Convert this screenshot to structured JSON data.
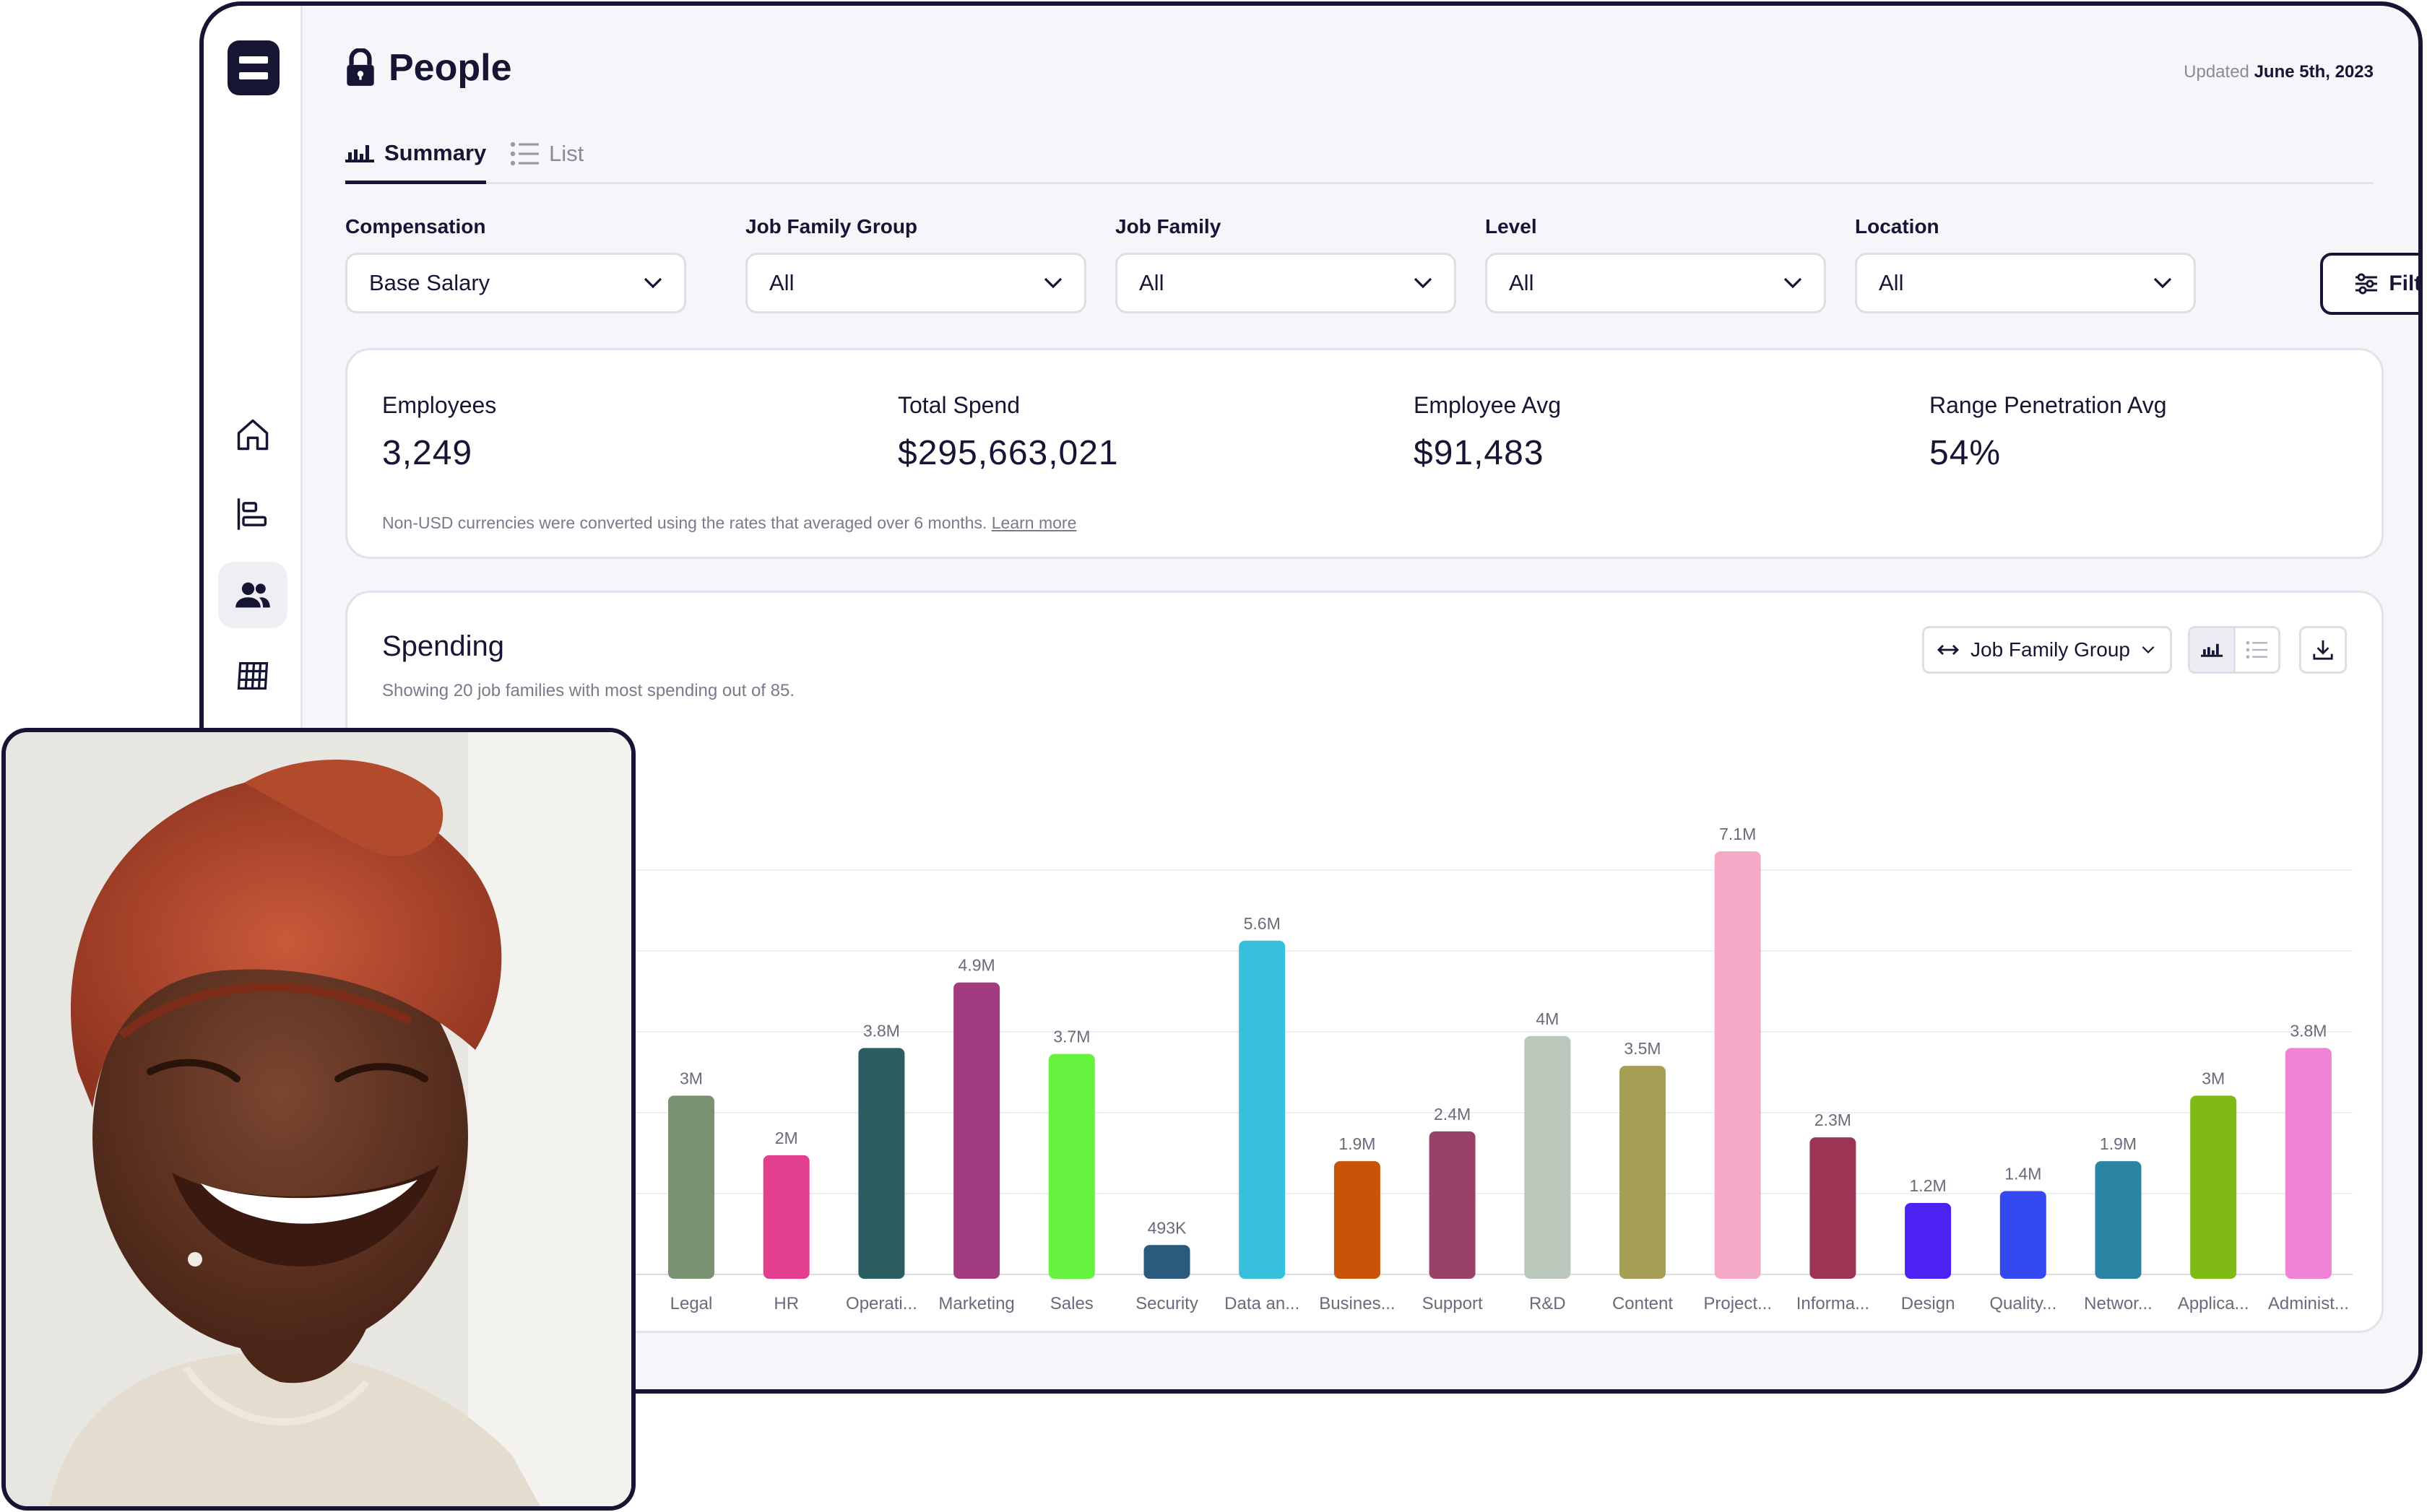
{
  "page": {
    "title": "People",
    "updated_prefix": "Updated",
    "updated_date": "June 5th, 2023"
  },
  "tabs": [
    {
      "label": "Summary",
      "icon": "bar-chart-icon",
      "active": true
    },
    {
      "label": "List",
      "icon": "list-icon",
      "active": false
    }
  ],
  "sidebar": {
    "items": [
      {
        "icon": "home-icon"
      },
      {
        "icon": "org-chart-icon"
      },
      {
        "icon": "people-icon",
        "active": true
      },
      {
        "icon": "grid-table-icon"
      }
    ]
  },
  "filters": {
    "compensation": {
      "label": "Compensation",
      "value": "Base Salary"
    },
    "job_family_group": {
      "label": "Job Family Group",
      "value": "All"
    },
    "job_family": {
      "label": "Job Family",
      "value": "All"
    },
    "level": {
      "label": "Level",
      "value": "All"
    },
    "location": {
      "label": "Location",
      "value": "All"
    },
    "filter_button": "Filter"
  },
  "stats": {
    "employees": {
      "label": "Employees",
      "value": "3,249"
    },
    "total_spend": {
      "label": "Total Spend",
      "value": "$295,663,021"
    },
    "employee_avg": {
      "label": "Employee Avg",
      "value": "$91,483"
    },
    "range_penetration": {
      "label": "Range Penetration Avg",
      "value": "54%"
    },
    "note": "Non-USD currencies were converted using the rates that averaged over 6 months.",
    "learn_more": "Learn more"
  },
  "spending": {
    "title": "Spending",
    "subtitle": "Showing 20 job families with most spending out of 85.",
    "group_by": "Job Family Group"
  },
  "colors": {
    "accent": "#161634"
  },
  "chart_data": {
    "type": "bar",
    "categories": [
      "Legal",
      "HR",
      "Operati...",
      "Marketing",
      "Sales",
      "Security",
      "Data an...",
      "Busines...",
      "Support",
      "R&D",
      "Content",
      "Project...",
      "Informa...",
      "Design",
      "Quality...",
      "Networ...",
      "Applica...",
      "Administ..."
    ],
    "values": [
      3000000,
      2000000,
      3800000,
      4900000,
      3700000,
      493000,
      5600000,
      1900000,
      2400000,
      4000000,
      3500000,
      7100000,
      2300000,
      1200000,
      1400000,
      1900000,
      3000000,
      3800000
    ],
    "value_labels": [
      "3M",
      "2M",
      "3.8M",
      "4.9M",
      "3.7M",
      "493K",
      "5.6M",
      "1.9M",
      "2.4M",
      "4M",
      "3.5M",
      "7.1M",
      "2.3M",
      "1.2M",
      "1.4M",
      "1.9M",
      "3M",
      "3.8M"
    ],
    "colors": [
      "#7a9272",
      "#e43f8e",
      "#2c5d62",
      "#a23b7f",
      "#66f23e",
      "#2a5a7c",
      "#37c0de",
      "#c95408",
      "#9a4168",
      "#b9c8bb",
      "#a59e55",
      "#f4aac6",
      "#9b3553",
      "#4b22f2",
      "#3549f0",
      "#2c84a4",
      "#7fba17",
      "#f183d7"
    ],
    "grid": true
  }
}
